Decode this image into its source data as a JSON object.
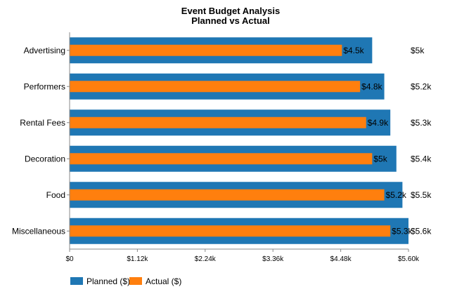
{
  "chart_data": {
    "type": "bar",
    "orientation": "horizontal",
    "title": "Event Budget Analysis",
    "subtitle": "Planned vs Actual",
    "categories": [
      "Advertising",
      "Performers",
      "Rental Fees",
      "Decoration",
      "Food",
      "Miscellaneous"
    ],
    "series": [
      {
        "name": "Planned ($)",
        "color": "#1f77b4",
        "values": [
          5000,
          5200,
          5300,
          5400,
          5500,
          5600
        ],
        "labels": [
          "$5k",
          "$5.2k",
          "$5.3k",
          "$5.4k",
          "$5.5k",
          "$5.6k"
        ]
      },
      {
        "name": "Actual ($)",
        "color": "#ff7f0e",
        "values": [
          4500,
          4800,
          4900,
          5000,
          5200,
          5300
        ],
        "labels": [
          "$4.5k",
          "$4.8k",
          "$4.9k",
          "$5k",
          "$5.2k",
          "$5.3k"
        ]
      }
    ],
    "xlim": [
      0,
      5600
    ],
    "xticks": [
      0,
      1120,
      2240,
      3360,
      4480,
      5600
    ],
    "xtick_labels": [
      "$0",
      "$1.12k",
      "$2.24k",
      "$3.36k",
      "$4.48k",
      "$5.60k"
    ],
    "xlabel": "",
    "ylabel": "",
    "grid": false,
    "legend_position": "bottom-left"
  }
}
